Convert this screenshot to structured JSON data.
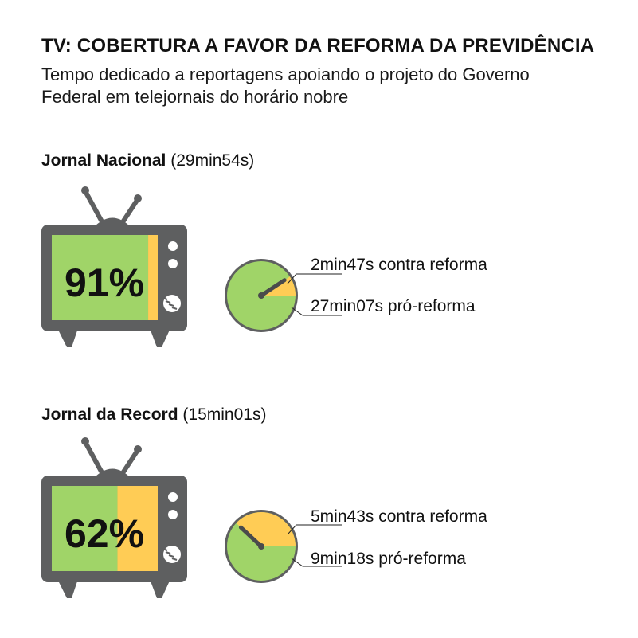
{
  "title": "TV: COBERTURA A FAVOR DA REFORMA DA PREVIDÊNCIA",
  "subtitle": "Tempo dedicado a reportagens apoiando o projeto do Governo Federal em telejornais do horário nobre",
  "colors": {
    "pro": "#a0d468",
    "contra": "#ffcc55",
    "tv_body": "#5e5f60",
    "dark": "#4a4b4c"
  },
  "chart_data": [
    {
      "type": "pie",
      "program": "Jornal Nacional",
      "total": "(29min54s)",
      "percent_label": "91%",
      "slices": [
        {
          "name": "contra reforma",
          "value_seconds": 167,
          "label": "2min47s contra reforma",
          "color": "#ffcc55"
        },
        {
          "name": "pró-reforma",
          "value_seconds": 1627,
          "label": "27min07s pró-reforma",
          "color": "#a0d468"
        }
      ],
      "pro_fraction": 0.91
    },
    {
      "type": "pie",
      "program": "Jornal da Record",
      "total": "(15min01s)",
      "percent_label": "62%",
      "slices": [
        {
          "name": "contra reforma",
          "value_seconds": 343,
          "label": "5min43s contra reforma",
          "color": "#ffcc55"
        },
        {
          "name": "pró-reforma",
          "value_seconds": 558,
          "label": "9min18s pró-reforma",
          "color": "#a0d468"
        }
      ],
      "pro_fraction": 0.62
    }
  ]
}
